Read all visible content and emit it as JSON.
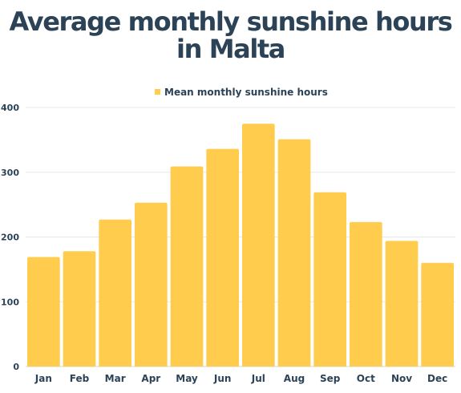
{
  "title_line1": "Average monthly sunshine hours",
  "title_line2": "in Malta",
  "chart_data": {
    "type": "bar",
    "title": "Average monthly sunshine hours in Malta",
    "categories": [
      "Jan",
      "Feb",
      "Mar",
      "Apr",
      "May",
      "Jun",
      "Jul",
      "Aug",
      "Sep",
      "Oct",
      "Nov",
      "Dec"
    ],
    "series": [
      {
        "name": "Mean monthly sunshine hours",
        "color": "#ffcc4d",
        "values": [
          169,
          178,
          227,
          253,
          309,
          336,
          375,
          351,
          269,
          223,
          194,
          160
        ]
      }
    ],
    "ylim": [
      0,
      400
    ],
    "yticks": [
      0,
      100,
      200,
      300,
      400
    ],
    "grid": true,
    "legend": "top-center"
  }
}
